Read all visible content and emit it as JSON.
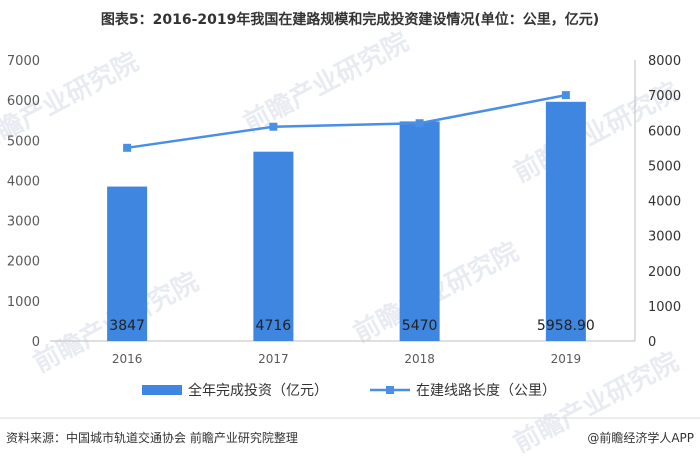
{
  "chart_data": {
    "type": "bar+line",
    "title": "图表5：2016-2019年我国在建路规模和完成投资建设情况(单位：公里，亿元)",
    "categories": [
      "2016",
      "2017",
      "2018",
      "2019"
    ],
    "series": [
      {
        "name": "全年完成投资（亿元）",
        "type": "bar",
        "axis": "left",
        "values": [
          3847,
          4716,
          5470,
          5958.9
        ],
        "labels": [
          "3847",
          "4716",
          "5470",
          "5958.90"
        ],
        "color": "#3f86e0"
      },
      {
        "name": "在建线路长度（公里）",
        "type": "line",
        "axis": "right",
        "values": [
          5500,
          6100,
          6200,
          7000
        ],
        "color": "#4a8fe6"
      }
    ],
    "left_axis": {
      "ylim": [
        0,
        7000
      ],
      "ticks": [
        "0",
        "1000",
        "2000",
        "3000",
        "4000",
        "5000",
        "6000",
        "7000"
      ]
    },
    "right_axis": {
      "ylim": [
        0,
        8000
      ],
      "ticks": [
        "0",
        "1000",
        "2000",
        "3000",
        "4000",
        "5000",
        "6000",
        "7000",
        "8000"
      ]
    },
    "grid": false,
    "legend": "bottom"
  },
  "source": "资料来源：中国城市轨道交通协会 前瞻产业研究院整理",
  "brand": "@前瞻经济学人APP",
  "watermark": "前瞻产业研究院"
}
